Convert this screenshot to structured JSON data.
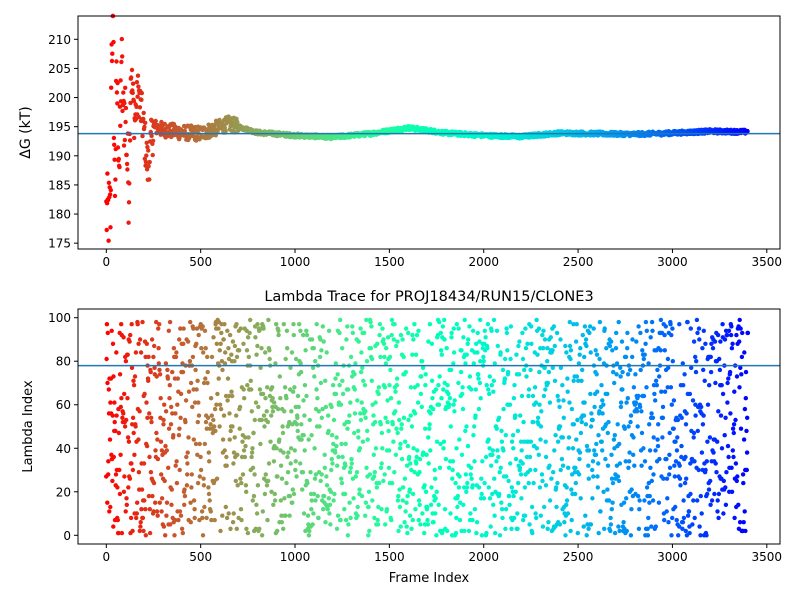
{
  "chart_data": [
    {
      "type": "scatter",
      "title": "",
      "xlabel": "",
      "ylabel": "ΔG (kT)",
      "xlim": [
        -150,
        3570
      ],
      "ylim": [
        174,
        214
      ],
      "xticks": [
        0,
        500,
        1000,
        1500,
        2000,
        2500,
        3000,
        3500
      ],
      "yticks": [
        175,
        180,
        185,
        190,
        195,
        200,
        205,
        210
      ],
      "hline": 193.8,
      "hline_color": "#1f77b4",
      "colormap": "rainbow",
      "n_frames": 3400,
      "trace_points": [
        [
          5,
          180
        ],
        [
          15,
          180
        ],
        [
          25,
          180
        ],
        [
          10,
          190
        ],
        [
          20,
          200
        ],
        [
          30,
          210
        ],
        [
          35,
          214
        ],
        [
          45,
          183
        ],
        [
          55,
          203
        ],
        [
          60,
          198
        ],
        [
          70,
          188
        ],
        [
          80,
          207
        ],
        [
          90,
          196
        ],
        [
          100,
          199
        ],
        [
          110,
          190
        ],
        [
          120,
          184
        ],
        [
          130,
          205
        ],
        [
          150,
          196
        ],
        [
          170,
          201
        ],
        [
          200,
          194
        ],
        [
          220,
          188
        ],
        [
          250,
          195
        ],
        [
          300,
          194.5
        ],
        [
          400,
          194
        ],
        [
          500,
          193.8
        ],
        [
          650,
          195.5
        ],
        [
          800,
          194
        ],
        [
          1000,
          193.5
        ],
        [
          1200,
          193.2
        ],
        [
          1400,
          193.8
        ],
        [
          1600,
          194.8
        ],
        [
          1800,
          193.9
        ],
        [
          2000,
          193.5
        ],
        [
          2200,
          193.3
        ],
        [
          2400,
          193.9
        ],
        [
          2600,
          193.8
        ],
        [
          2800,
          193.7
        ],
        [
          3000,
          193.9
        ],
        [
          3200,
          194.2
        ],
        [
          3400,
          194.1
        ]
      ]
    },
    {
      "type": "scatter",
      "title": "Lambda Trace for PROJ18434/RUN15/CLONE3",
      "xlabel": "Frame Index",
      "ylabel": "Lambda Index",
      "xlim": [
        -150,
        3570
      ],
      "ylim": [
        -4,
        104
      ],
      "xticks": [
        0,
        500,
        1000,
        1500,
        2000,
        2500,
        3000,
        3500
      ],
      "yticks": [
        0,
        20,
        40,
        60,
        80,
        100
      ],
      "hline": 78,
      "hline_color": "#1f77b4",
      "colormap": "rainbow",
      "n_frames": 3400,
      "lambda_range": [
        0,
        99
      ],
      "distribution": "uniform random lambda index per frame"
    }
  ]
}
